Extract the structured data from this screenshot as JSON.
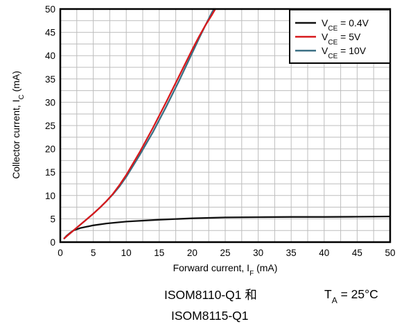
{
  "chart_data": {
    "type": "line",
    "xlabel": {
      "main": "Forward current, I",
      "sub": "F",
      "unit": " (mA)"
    },
    "ylabel": {
      "main": "Collector current, I",
      "sub": "C",
      "unit": " (mA)"
    },
    "xlim": [
      0,
      50
    ],
    "ylim": [
      0,
      50
    ],
    "xticks": [
      0,
      5,
      10,
      15,
      20,
      25,
      30,
      35,
      40,
      45,
      50
    ],
    "yticks": [
      0,
      5,
      10,
      15,
      20,
      25,
      30,
      35,
      40,
      45,
      50
    ],
    "grid": true,
    "legend_position": "top-right",
    "series": [
      {
        "name": {
          "main": "V",
          "sub": "CE",
          "rest": " = 0.4V"
        },
        "color": "#111111",
        "x": [
          0.6,
          1,
          1.5,
          2,
          3,
          4,
          5,
          7,
          10,
          15,
          20,
          25,
          30,
          35,
          40,
          45,
          50
        ],
        "y": [
          0.8,
          1.4,
          2.0,
          2.5,
          3.0,
          3.3,
          3.6,
          4.0,
          4.4,
          4.8,
          5.1,
          5.3,
          5.35,
          5.4,
          5.4,
          5.45,
          5.5
        ]
      },
      {
        "name": {
          "main": "V",
          "sub": "CE",
          "rest": " = 5V"
        },
        "color": "#d7191c",
        "x": [
          0.6,
          1,
          2,
          3,
          4,
          5,
          6,
          7,
          8,
          9,
          10,
          12,
          14,
          16,
          18,
          20,
          21,
          22,
          23,
          23.5
        ],
        "y": [
          0.8,
          1.3,
          2.5,
          3.7,
          4.9,
          6.1,
          7.4,
          8.8,
          10.4,
          12.3,
          14.4,
          19.2,
          24.4,
          29.9,
          35.6,
          41.3,
          44.0,
          46.5,
          48.8,
          50
        ]
      },
      {
        "name": {
          "main": "V",
          "sub": "CE",
          "rest": " = 10V"
        },
        "color": "#3a6f84",
        "x": [
          0.6,
          1,
          2,
          3,
          4,
          5,
          6,
          7,
          8,
          9,
          10,
          12,
          14,
          16,
          18,
          20,
          21,
          22,
          23,
          23.3
        ],
        "y": [
          0.8,
          1.3,
          2.5,
          3.7,
          4.9,
          6.1,
          7.4,
          8.8,
          10.3,
          12.0,
          14.0,
          18.6,
          23.5,
          28.9,
          34.6,
          40.6,
          43.6,
          46.5,
          49.3,
          50
        ]
      }
    ]
  },
  "notes": {
    "device_line1": "ISOM8110-Q1 和",
    "device_line2": "ISOM8115-Q1",
    "temperature": {
      "main": "T",
      "sub": "A",
      "rest": " = 25°C"
    }
  }
}
